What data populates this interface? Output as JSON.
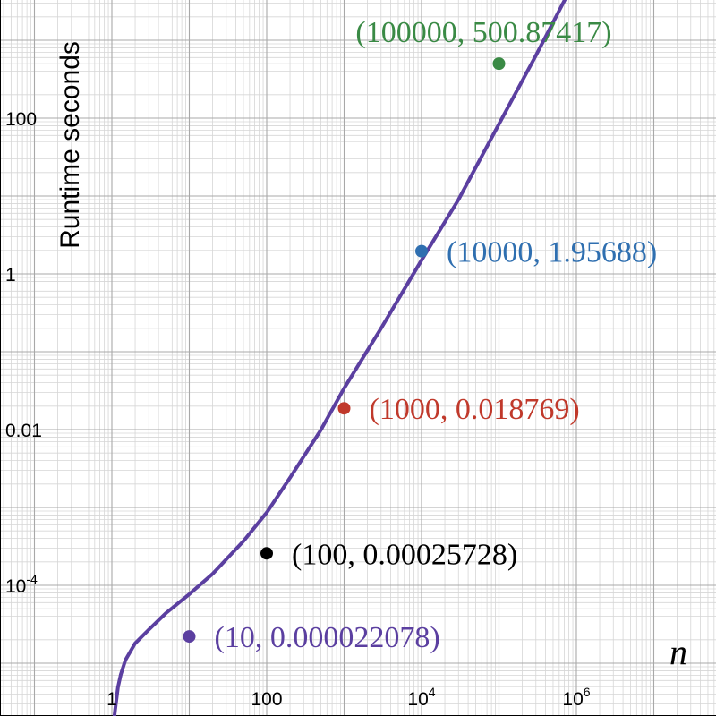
{
  "chart_data": {
    "type": "line",
    "xlabel": "n",
    "ylabel": "Runtime seconds",
    "xscale": "log",
    "yscale": "log",
    "xlim": [
      0.04,
      40000000
    ],
    "ylim": [
      1e-06,
      9000
    ],
    "x_ticks": [
      {
        "base": "1",
        "sup": ""
      },
      {
        "base": "100",
        "sup": ""
      },
      {
        "base": "10",
        "sup": "4"
      },
      {
        "base": "10",
        "sup": "6"
      }
    ],
    "y_ticks": [
      {
        "base": "100",
        "sup": ""
      },
      {
        "base": "1",
        "sup": ""
      },
      {
        "base": "0.01",
        "sup": ""
      },
      {
        "base": "10",
        "sup": "-4"
      }
    ],
    "grid": true,
    "curve": {
      "color": "#5b3fa0",
      "x": [
        1.0,
        1.01,
        1.05,
        1.1,
        1.2,
        1.3,
        1.5,
        2,
        3,
        5,
        10,
        20,
        50,
        100,
        200,
        500,
        1000,
        3000,
        10000,
        30000,
        100000,
        300000,
        1000000
      ],
      "y": [
        6e-07,
        2.6e-07,
        1.3e-06,
        2.5e-06,
        4.9e-06,
        7.1e-06,
        1.1e-05,
        1.8e-05,
        2.7e-05,
        4.4e-05,
        7.7e-05,
        0.00014,
        0.00037,
        0.00086,
        0.0024,
        0.0099,
        0.034,
        0.2,
        1.5,
        9.0,
        84,
        640,
        6400
      ]
    },
    "points": [
      {
        "x": 10,
        "y": 2.2078e-05,
        "label": "(10, 0.000022078)",
        "color": "#5b3fa0"
      },
      {
        "x": 100,
        "y": 0.00025728,
        "label": "(100, 0.00025728)",
        "color": "#000000"
      },
      {
        "x": 1000,
        "y": 0.018769,
        "label": "(1000, 0.018769)",
        "color": "#c0392b"
      },
      {
        "x": 10000,
        "y": 1.95688,
        "label": "(10000, 1.95688)",
        "color": "#2f6fb0"
      },
      {
        "x": 100000,
        "y": 500.87417,
        "label": "(100000, 500.87417)",
        "color": "#3a8a45"
      }
    ]
  }
}
